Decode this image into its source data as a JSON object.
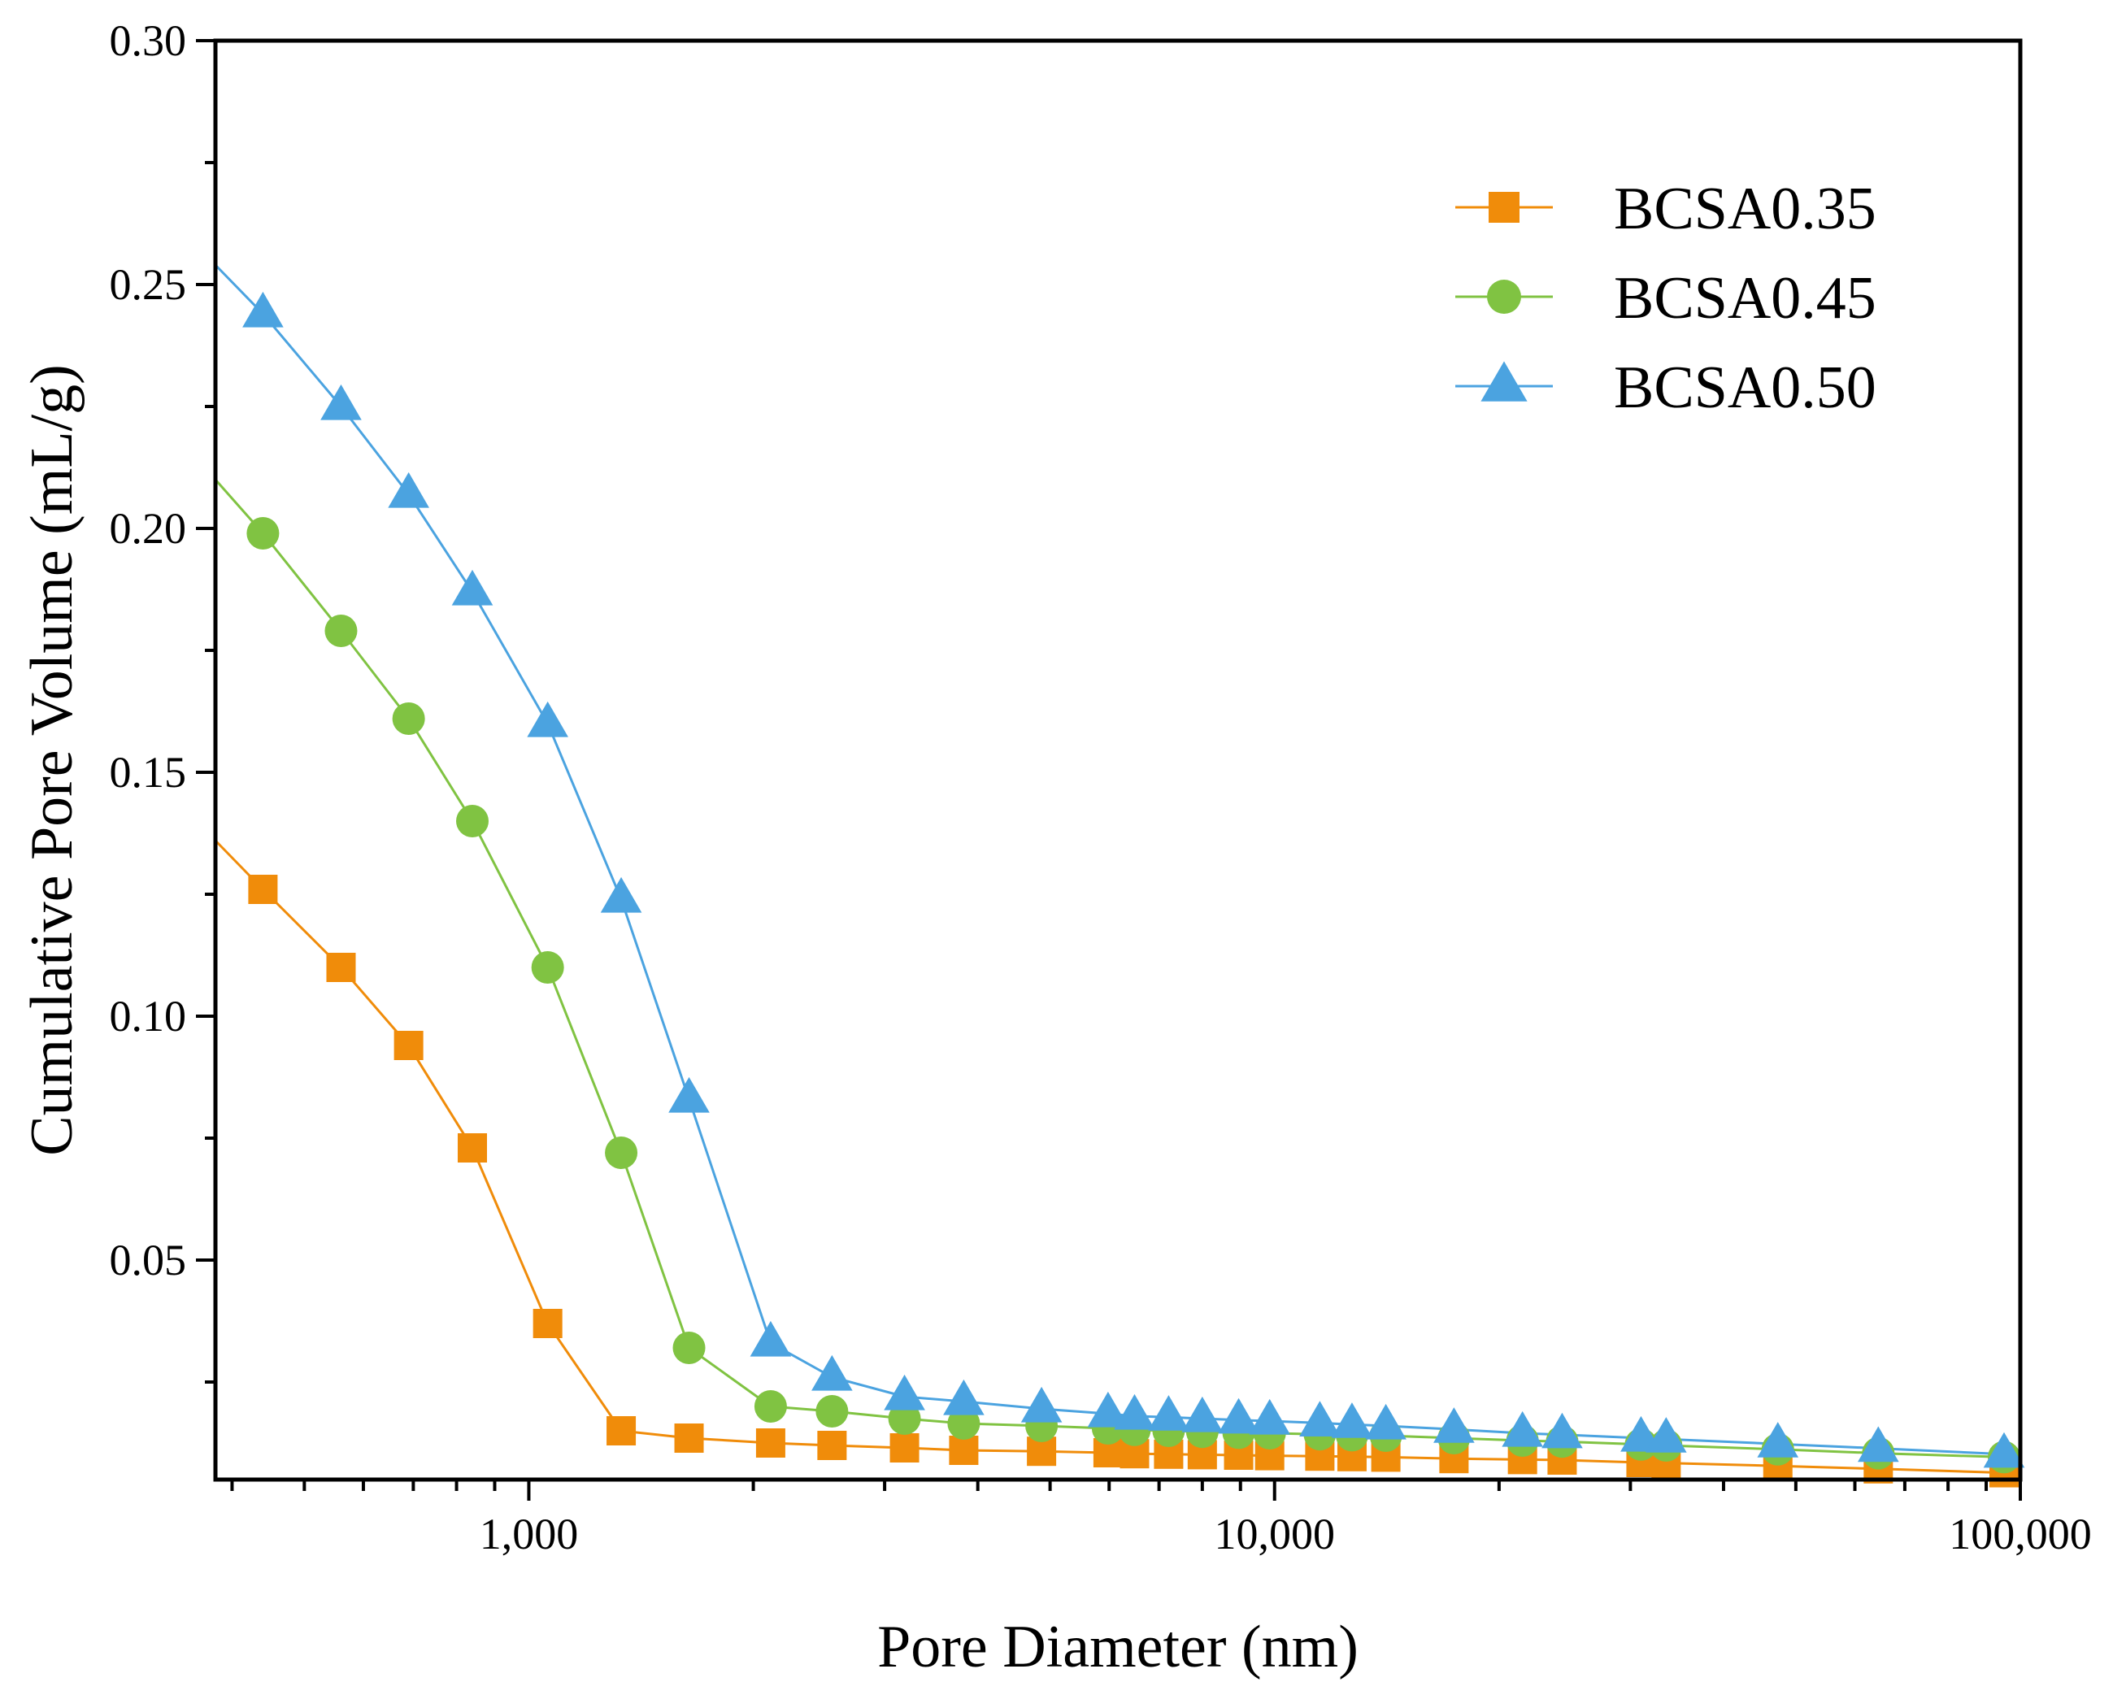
{
  "chart_data": {
    "type": "line",
    "title": "",
    "xlabel": "Pore Diameter  (nm)",
    "ylabel": "Cumulative Pore Volume  (mL/g)",
    "xscale": "log",
    "xlim": [
      380,
      100000
    ],
    "ylim": [
      0.005,
      0.3
    ],
    "grid": false,
    "legend_position": "top-right",
    "x_ticks": [
      {
        "value": 1000,
        "label": "1,000"
      },
      {
        "value": 10000,
        "label": "10,000"
      },
      {
        "value": 100000,
        "label": "100,000"
      }
    ],
    "y_ticks": [
      {
        "value": 0.05,
        "label": "0.05"
      },
      {
        "value": 0.1,
        "label": "0.10"
      },
      {
        "value": 0.15,
        "label": "0.15"
      },
      {
        "value": 0.2,
        "label": "0.20"
      },
      {
        "value": 0.25,
        "label": "0.25"
      },
      {
        "value": 0.3,
        "label": "0.30"
      }
    ],
    "series": [
      {
        "name": "BCSA0.35",
        "marker": "square",
        "color": "#F08C0A",
        "start": [
          380,
          0.136
        ],
        "end": [
          100000,
          0.0055
        ],
        "x": [
          440,
          560,
          690,
          840,
          1060,
          1330,
          1640,
          2110,
          2550,
          3190,
          3830,
          4870,
          5980,
          6490,
          7210,
          8000,
          8950,
          9850,
          11500,
          12700,
          14100,
          17400,
          21500,
          24300,
          31000,
          33500,
          47300,
          64500,
          95100
        ],
        "values": [
          0.126,
          0.11,
          0.094,
          0.073,
          0.037,
          0.015,
          0.0135,
          0.0125,
          0.012,
          0.0115,
          0.011,
          0.0108,
          0.0105,
          0.0103,
          0.0102,
          0.0101,
          0.01,
          0.0099,
          0.0098,
          0.0097,
          0.0096,
          0.0093,
          0.0091,
          0.009,
          0.0085,
          0.0084,
          0.0078,
          0.0072,
          0.0064
        ]
      },
      {
        "name": "BCSA0.45",
        "marker": "circle",
        "color": "#80C342",
        "start": [
          380,
          0.21
        ],
        "end": [
          100000,
          0.0093
        ],
        "x": [
          440,
          560,
          690,
          840,
          1060,
          1330,
          1640,
          2110,
          2550,
          3190,
          3830,
          4870,
          5980,
          6490,
          7210,
          8000,
          8950,
          9850,
          11500,
          12700,
          14100,
          17400,
          21500,
          24300,
          31000,
          33500,
          47300,
          64500,
          95100
        ],
        "values": [
          0.199,
          0.179,
          0.161,
          0.14,
          0.11,
          0.072,
          0.032,
          0.02,
          0.019,
          0.0175,
          0.0165,
          0.016,
          0.0155,
          0.0152,
          0.015,
          0.0148,
          0.0146,
          0.0145,
          0.0143,
          0.0141,
          0.014,
          0.0135,
          0.013,
          0.0128,
          0.0122,
          0.012,
          0.0112,
          0.0104,
          0.0096
        ]
      },
      {
        "name": "BCSA0.50",
        "marker": "triangle",
        "color": "#4BA3E0",
        "start": [
          380,
          0.254
        ],
        "end": [
          100000,
          0.0096
        ],
        "x": [
          440,
          560,
          690,
          840,
          1060,
          1330,
          1640,
          2110,
          2550,
          3190,
          3830,
          4870,
          5980,
          6490,
          7210,
          8000,
          8950,
          9850,
          11500,
          12700,
          14100,
          17400,
          21500,
          24300,
          31000,
          33500,
          47300,
          64500,
          95100
        ],
        "values": [
          0.244,
          0.225,
          0.207,
          0.187,
          0.16,
          0.124,
          0.083,
          0.033,
          0.026,
          0.022,
          0.021,
          0.0195,
          0.0185,
          0.018,
          0.0178,
          0.0175,
          0.0172,
          0.017,
          0.0166,
          0.0163,
          0.016,
          0.0153,
          0.0145,
          0.0142,
          0.0135,
          0.0133,
          0.0123,
          0.0114,
          0.0102
        ]
      }
    ]
  }
}
